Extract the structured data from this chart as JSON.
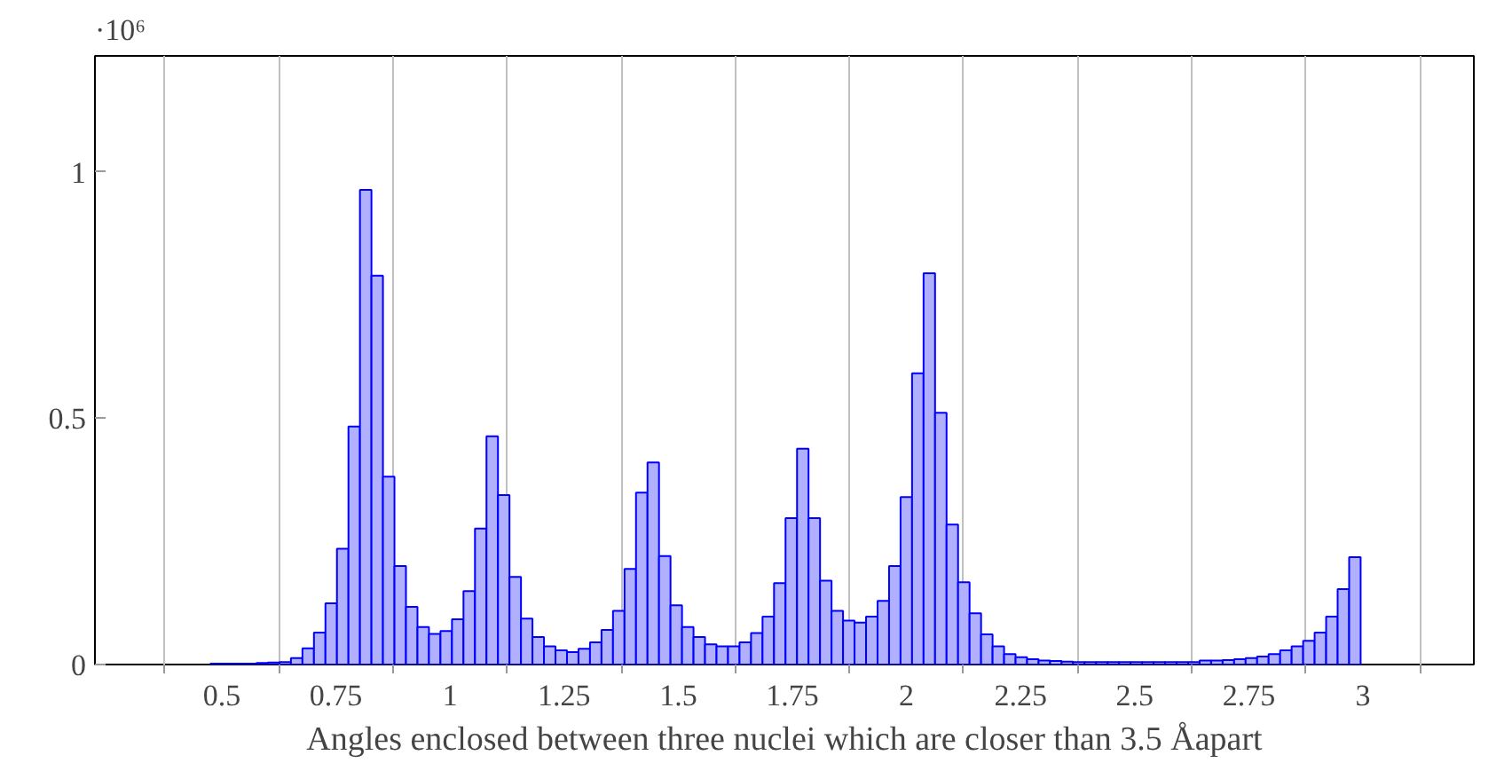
{
  "chart_data": {
    "type": "histogram",
    "xlabel": "Angles enclosed between three nuclei which are closer than 3.5 Åapart",
    "annotations": [
      "·10⁶"
    ],
    "bins": [
      0.475,
      0.5002,
      0.5254,
      0.5506,
      0.5758,
      0.601,
      0.6262,
      0.6514,
      0.6766,
      0.7018,
      0.727,
      0.7522,
      0.7774,
      0.8026,
      0.8278,
      0.853,
      0.8782,
      0.9034,
      0.9286,
      0.9538,
      0.979,
      1.0042,
      1.0294,
      1.0546,
      1.0798,
      1.105,
      1.1302,
      1.1554,
      1.1806,
      1.2058,
      1.231,
      1.2562,
      1.2814,
      1.3066,
      1.3318,
      1.357,
      1.3822,
      1.4074,
      1.4326,
      1.4578,
      1.483,
      1.5082,
      1.5334,
      1.5586,
      1.5838,
      1.609,
      1.6342,
      1.6594,
      1.6846,
      1.7098,
      1.735,
      1.7602,
      1.7854,
      1.8106,
      1.8358,
      1.861,
      1.8862,
      1.9114,
      1.9366,
      1.9618,
      1.987,
      2.0122,
      2.0374,
      2.0626,
      2.0878,
      2.113,
      2.1382,
      2.1634,
      2.1886,
      2.2138,
      2.239,
      2.2642,
      2.2894,
      2.3146,
      2.3398,
      2.365,
      2.3902,
      2.4154,
      2.4406,
      2.4658,
      2.491,
      2.5162,
      2.5414,
      2.5666,
      2.5918,
      2.617,
      2.6422,
      2.6674,
      2.6926,
      2.7178,
      2.743,
      2.7682,
      2.7934,
      2.8186,
      2.8438,
      2.869,
      2.8942,
      2.9194,
      2.9446,
      2.9698,
      2.995
    ],
    "values": [
      0.002,
      0.002,
      0.002,
      0.002,
      0.003,
      0.004,
      0.005,
      0.013,
      0.033,
      0.065,
      0.124,
      0.235,
      0.483,
      0.963,
      0.789,
      0.381,
      0.2,
      0.117,
      0.076,
      0.062,
      0.068,
      0.092,
      0.149,
      0.276,
      0.463,
      0.344,
      0.178,
      0.093,
      0.056,
      0.037,
      0.029,
      0.025,
      0.032,
      0.045,
      0.07,
      0.109,
      0.194,
      0.349,
      0.41,
      0.22,
      0.12,
      0.076,
      0.056,
      0.041,
      0.037,
      0.037,
      0.045,
      0.064,
      0.097,
      0.165,
      0.297,
      0.438,
      0.297,
      0.17,
      0.109,
      0.089,
      0.085,
      0.097,
      0.129,
      0.2,
      0.34,
      0.591,
      0.794,
      0.511,
      0.284,
      0.167,
      0.104,
      0.061,
      0.037,
      0.021,
      0.015,
      0.011,
      0.008,
      0.007,
      0.006,
      0.005,
      0.005,
      0.005,
      0.005,
      0.005,
      0.005,
      0.005,
      0.005,
      0.005,
      0.005,
      0.005,
      0.008,
      0.008,
      0.009,
      0.011,
      0.013,
      0.016,
      0.021,
      0.029,
      0.037,
      0.048,
      0.065,
      0.097,
      0.153,
      0.218
    ],
    "color": "#b0b0ff",
    "xlim": [
      0.222,
      3.243
    ],
    "ylim": [
      0,
      1.235
    ],
    "xticks": [
      {
        "value": 0.375,
        "label": null
      },
      0.5,
      {
        "value": 0.625,
        "label": null
      },
      0.75,
      {
        "value": 0.875,
        "label": null
      },
      1,
      {
        "value": 1.125,
        "label": null
      },
      1.25,
      {
        "value": 1.375,
        "label": null
      },
      1.5,
      {
        "value": 1.625,
        "label": null
      },
      1.75,
      {
        "value": 1.875,
        "label": null
      },
      2,
      {
        "value": 2.125,
        "label": null
      },
      2.25,
      {
        "value": 2.375,
        "label": null
      },
      2.5,
      {
        "value": 2.625,
        "label": null
      },
      2.75,
      {
        "value": 2.875,
        "label": null
      },
      3,
      {
        "value": 3.125,
        "label": null
      }
    ],
    "yticks": [
      0,
      0.5,
      1
    ],
    "grid": "x"
  }
}
